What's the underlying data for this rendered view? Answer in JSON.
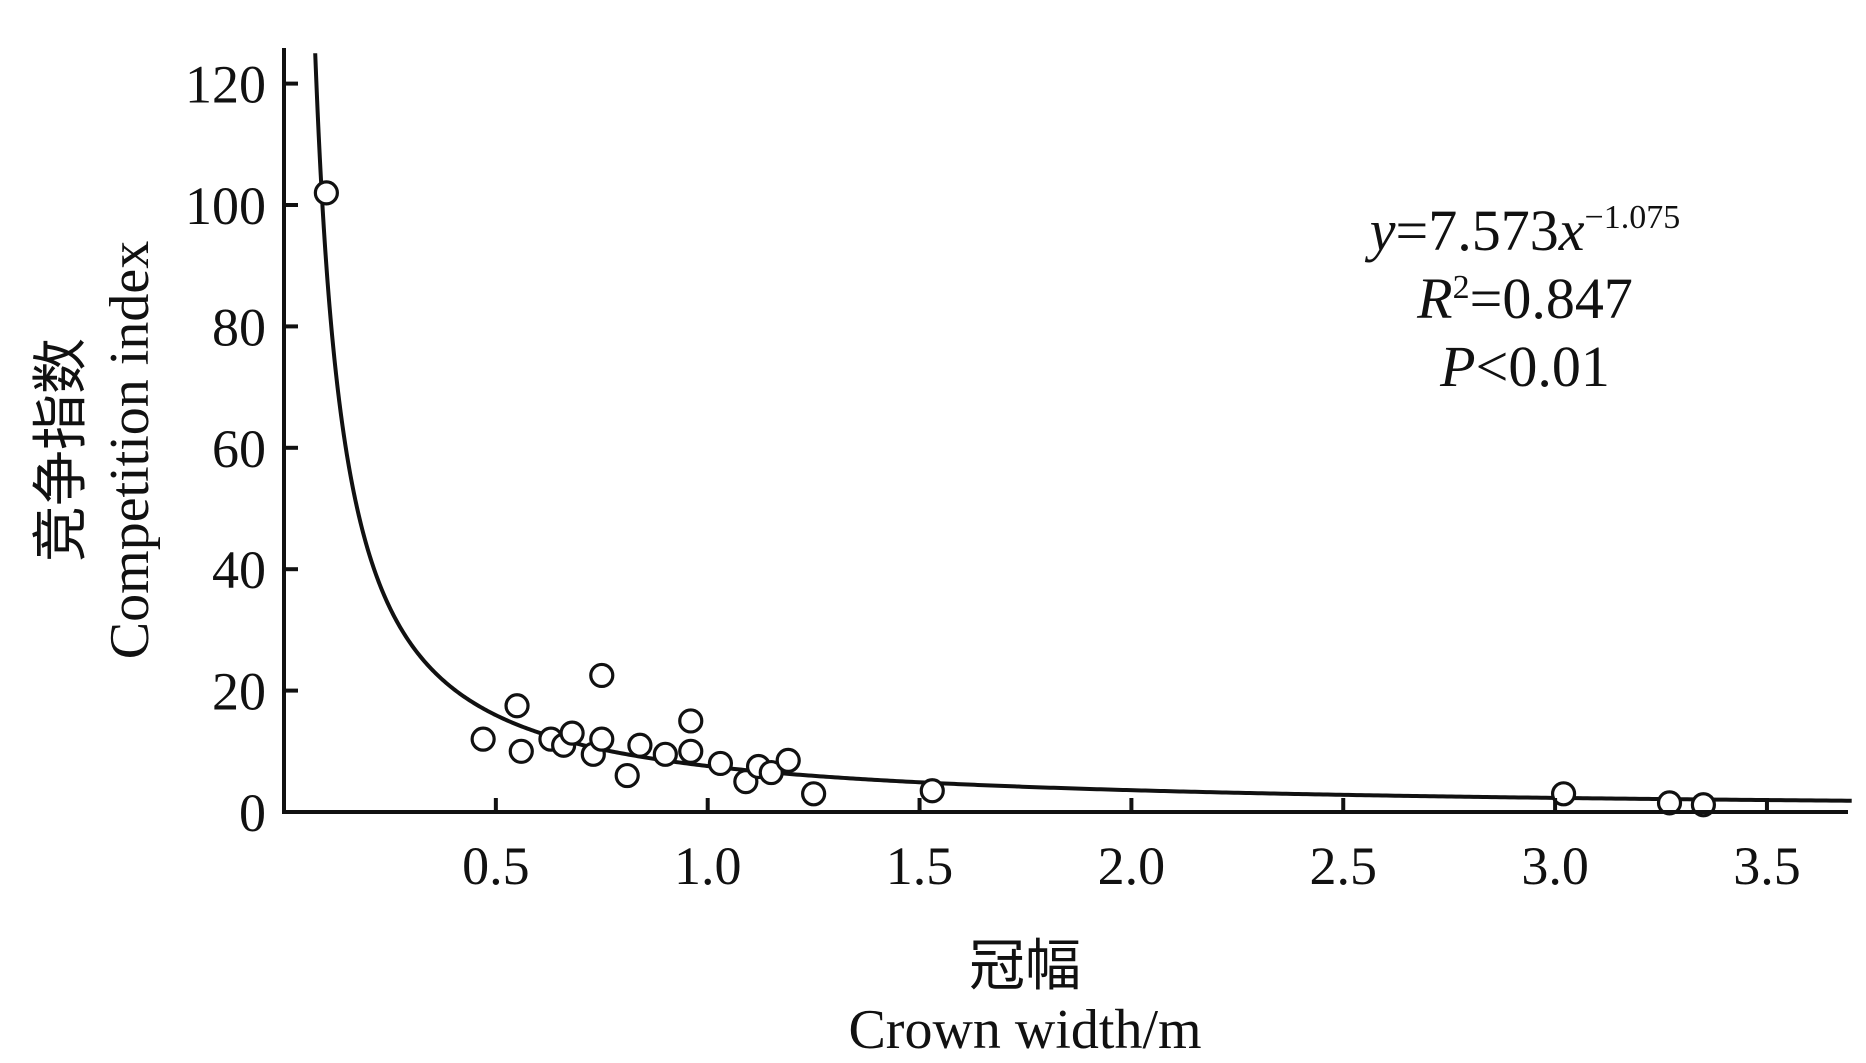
{
  "chart_data": {
    "type": "scatter",
    "xlabel_cn": "冠幅",
    "xlabel_en": "Crown width/m",
    "ylabel_cn": "竞争指数",
    "ylabel_en": "Competition index",
    "xlim": [
      0.02,
      3.7
    ],
    "ylim": [
      0,
      125
    ],
    "x_ticks": [
      "0.5",
      "1.0",
      "1.5",
      "2.0",
      "2.5",
      "3.0",
      "3.5"
    ],
    "y_ticks": [
      "0",
      "20",
      "40",
      "60",
      "80",
      "100",
      "120"
    ],
    "grid": false,
    "points": [
      {
        "x": 0.1,
        "y": 102.0
      },
      {
        "x": 0.47,
        "y": 12.0
      },
      {
        "x": 0.55,
        "y": 17.5
      },
      {
        "x": 0.56,
        "y": 10.0
      },
      {
        "x": 0.63,
        "y": 12.0
      },
      {
        "x": 0.66,
        "y": 11.0
      },
      {
        "x": 0.68,
        "y": 13.0
      },
      {
        "x": 0.73,
        "y": 9.5
      },
      {
        "x": 0.75,
        "y": 22.5
      },
      {
        "x": 0.75,
        "y": 12.0
      },
      {
        "x": 0.81,
        "y": 6.0
      },
      {
        "x": 0.84,
        "y": 11.0
      },
      {
        "x": 0.9,
        "y": 9.5
      },
      {
        "x": 0.96,
        "y": 15.0
      },
      {
        "x": 0.96,
        "y": 10.0
      },
      {
        "x": 1.03,
        "y": 8.0
      },
      {
        "x": 1.09,
        "y": 5.0
      },
      {
        "x": 1.12,
        "y": 7.5
      },
      {
        "x": 1.15,
        "y": 6.5
      },
      {
        "x": 1.19,
        "y": 8.5
      },
      {
        "x": 1.25,
        "y": 3.0
      },
      {
        "x": 1.53,
        "y": 3.5
      },
      {
        "x": 3.02,
        "y": 3.0
      },
      {
        "x": 3.27,
        "y": 1.5
      },
      {
        "x": 3.35,
        "y": 1.2
      }
    ],
    "fit": {
      "a": 7.573,
      "b": -1.075
    },
    "annotations": {
      "equation": {
        "prefix": "y",
        "middle": "=7.573",
        "var": "x",
        "exp": "−1.075"
      },
      "r2": {
        "var": "R",
        "sup": "2",
        "rest": "=0.847"
      },
      "p": {
        "var": "P",
        "rest": "<0.01"
      }
    }
  }
}
